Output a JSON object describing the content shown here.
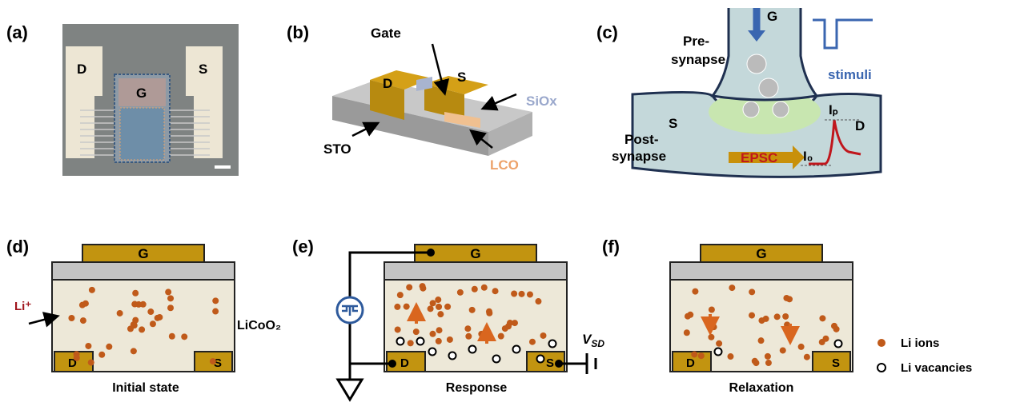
{
  "a": {
    "label": "(a)",
    "drain": "D",
    "gate": "G",
    "source": "S"
  },
  "b": {
    "label": "(b)",
    "gate": "Gate",
    "source": "S",
    "drain": "D",
    "siox": "SiOx",
    "sto": "STO",
    "lco": "LCO"
  },
  "c": {
    "label": "(c)",
    "gate": "G",
    "pre_1": "Pre-",
    "pre_2": "synapse",
    "stimuli": "stimuli",
    "source": "S",
    "drain": "D",
    "post_1": "Post-",
    "post_2": "synapse",
    "epsc": "EPSC",
    "ip": "Iₚ",
    "i0": "I₀"
  },
  "d": {
    "label": "(d)",
    "gate": "G",
    "drain": "D",
    "source": "S",
    "li_plus": "Li⁺",
    "material": "LiCoO₂",
    "caption": "Initial state"
  },
  "e": {
    "label": "(e)",
    "gate": "G",
    "drain": "D",
    "source": "S",
    "vsd_v": "V",
    "vsd_sub": "SD",
    "caption": "Response"
  },
  "f": {
    "label": "(f)",
    "gate": "G",
    "drain": "D",
    "source": "S",
    "caption": "Relaxation"
  },
  "legend": {
    "ions": "Li ions",
    "vacancies": "Li vacancies"
  }
}
